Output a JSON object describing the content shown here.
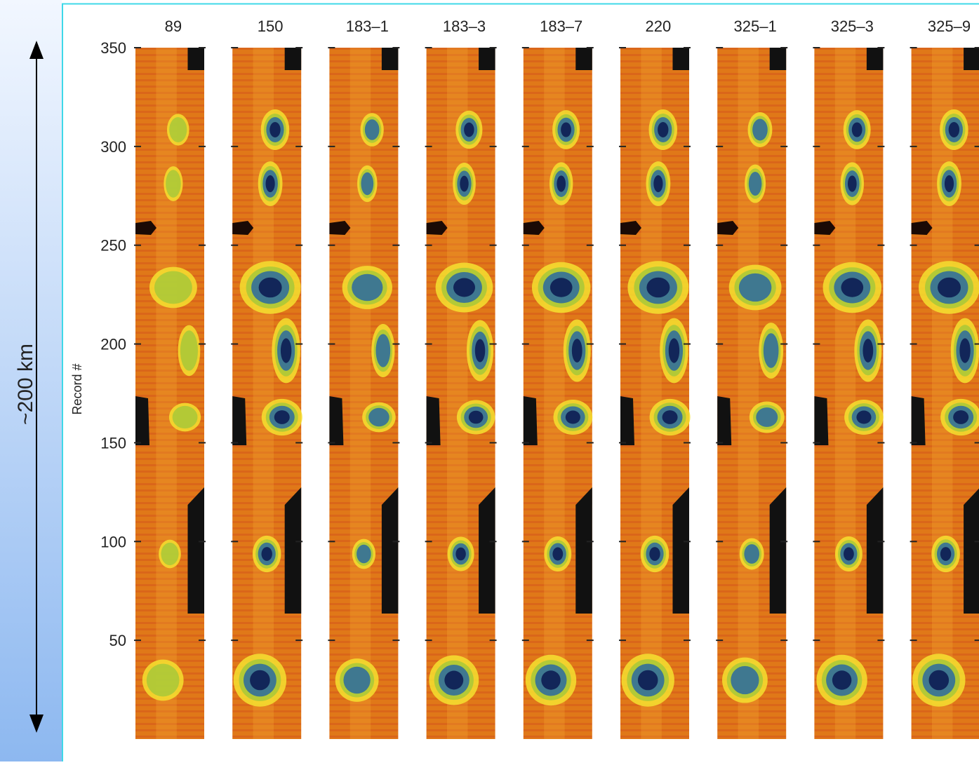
{
  "chart_data": {
    "type": "image-strips",
    "annotation": "~200 km",
    "y_label": "Record #",
    "panels": [
      "89",
      "150",
      "183–1",
      "183–3",
      "183–7",
      "220",
      "325–1",
      "325–3",
      "325–9"
    ],
    "ylim": [
      0,
      350
    ],
    "yticks": [
      50,
      100,
      150,
      200,
      250,
      300,
      350
    ]
  }
}
